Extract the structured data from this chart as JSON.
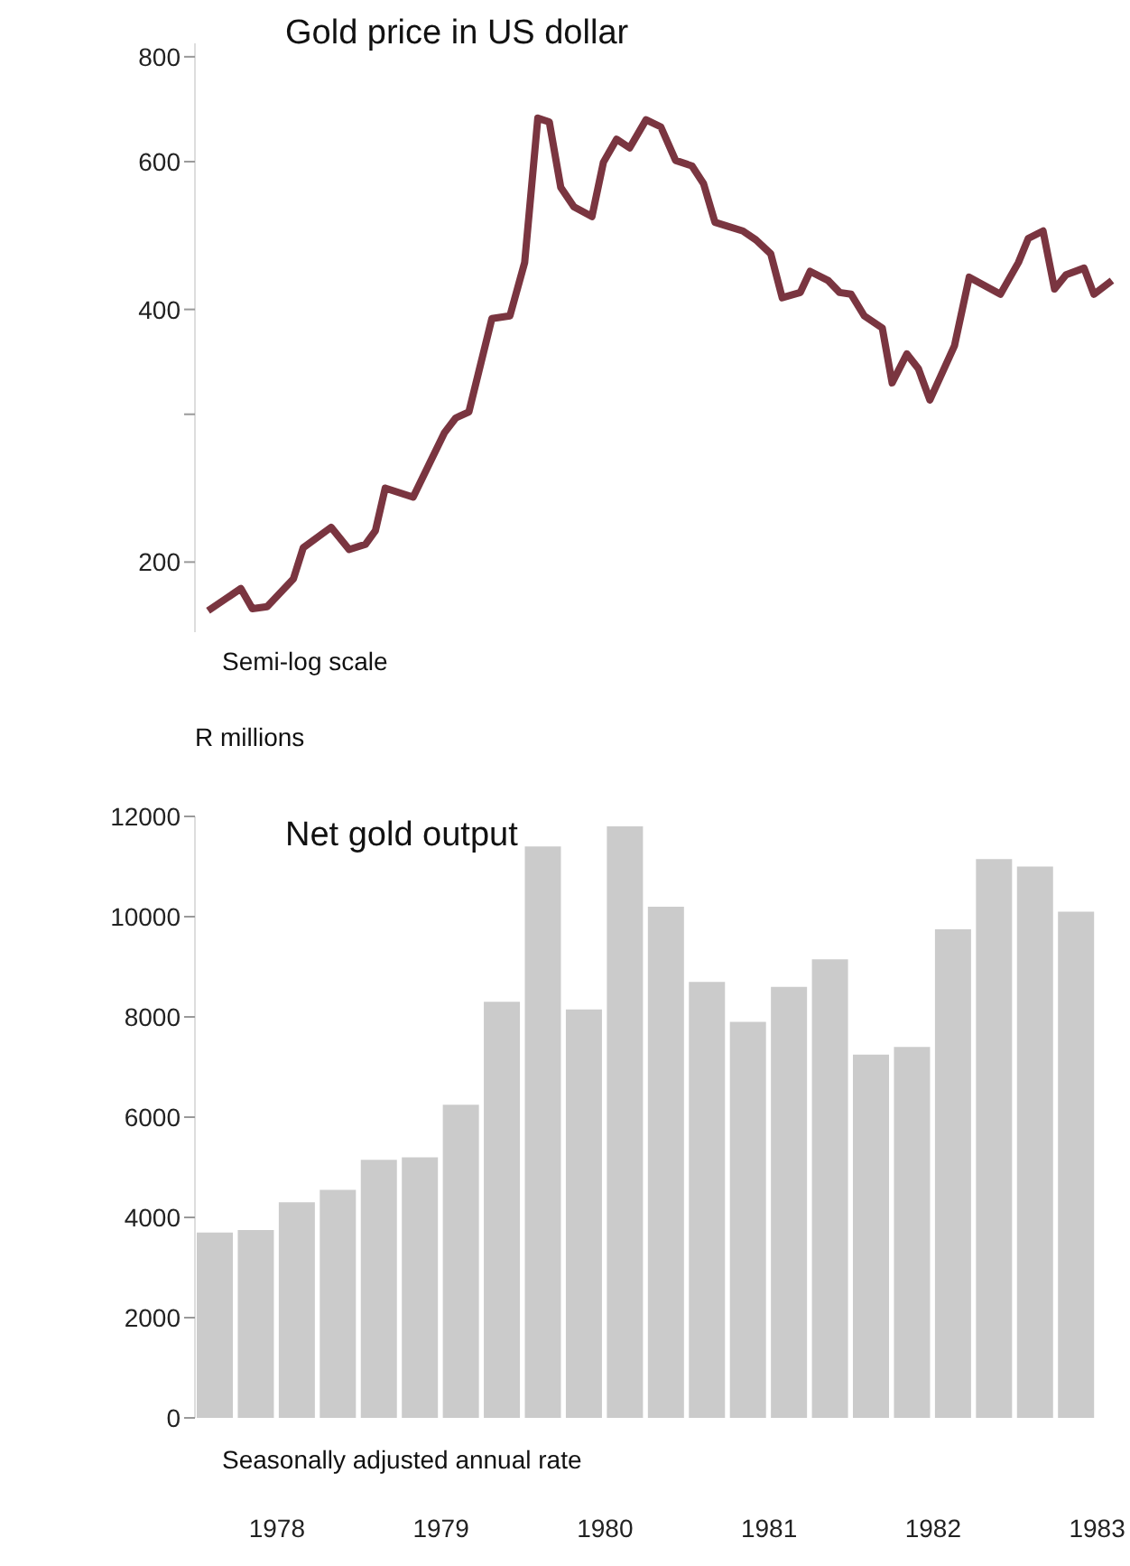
{
  "chart_data": [
    {
      "type": "line",
      "title": "Gold price in US dollar",
      "annotations": [
        "Semi-log scale"
      ],
      "color": "#7a3540",
      "log": true,
      "tick_labels": "y",
      "x": [
        1978.08,
        1978.28,
        1978.35,
        1978.44,
        1978.6,
        1978.66,
        1978.83,
        1978.94,
        1979.04,
        1979.1,
        1979.16,
        1979.33,
        1979.52,
        1979.59,
        1979.67,
        1979.81,
        1979.92,
        1980.01,
        1980.09,
        1980.16,
        1980.23,
        1980.31,
        1980.42,
        1980.49,
        1980.57,
        1980.65,
        1980.75,
        1980.84,
        1980.93,
        1981.03,
        1981.1,
        1981.17,
        1981.34,
        1981.42,
        1981.51,
        1981.58,
        1981.69,
        1981.75,
        1981.86,
        1981.93,
        1982.0,
        1982.08,
        1982.19,
        1982.25,
        1982.34,
        1982.41,
        1982.48,
        1982.63,
        1982.72,
        1982.91,
        1983.02,
        1983.08,
        1983.17,
        1983.24,
        1983.31,
        1983.42,
        1983.48,
        1983.59
      ],
      "values": [
        175,
        186,
        176,
        177,
        191,
        208,
        220,
        207,
        210,
        218,
        245,
        239,
        285,
        297,
        302,
        390,
        393,
        455,
        676,
        669,
        559,
        530,
        516,
        599,
        638,
        623,
        673,
        660,
        602,
        593,
        565,
        508,
        496,
        484,
        466,
        413,
        419,
        444,
        433,
        419,
        417,
        393,
        380,
        327,
        354,
        340,
        312,
        362,
        437,
        417,
        455,
        486,
        496,
        423,
        440,
        448,
        417,
        433
      ],
      "xlim": [
        1978,
        1983.7
      ],
      "ylim": [
        165,
        830
      ],
      "yticks": [
        200,
        {
          "value": 300,
          "label": null
        },
        400,
        600,
        800
      ]
    },
    {
      "type": "bar",
      "title": "Net gold output",
      "ylabel": "R millions",
      "annotations": [
        "Seasonally adjusted annual rate"
      ],
      "color": "#cbcbcb",
      "x": [
        1978.125,
        1978.375,
        1978.625,
        1978.875,
        1979.125,
        1979.375,
        1979.625,
        1979.875,
        1980.125,
        1980.375,
        1980.625,
        1980.875,
        1981.125,
        1981.375,
        1981.625,
        1981.875,
        1982.125,
        1982.375,
        1982.625,
        1982.875,
        1983.125,
        1983.375
      ],
      "values": [
        3700,
        3750,
        4300,
        4550,
        5150,
        5200,
        6250,
        8300,
        11400,
        8150,
        11800,
        10200,
        8700,
        7900,
        8600,
        9150,
        7250,
        7400,
        9750,
        11150,
        11000,
        10100
      ],
      "xlim": [
        1978,
        1983.7
      ],
      "xticks": [
        {
          "value": 1978.5,
          "label": "1978"
        },
        {
          "value": 1979.5,
          "label": "1979"
        },
        {
          "value": 1980.5,
          "label": "1980"
        },
        {
          "value": 1981.5,
          "label": "1981"
        },
        {
          "value": 1982.5,
          "label": "1982"
        },
        {
          "value": 1983.5,
          "label": "1983"
        }
      ],
      "ylim": [
        0,
        12000
      ],
      "yticks": [
        0,
        2000,
        4000,
        6000,
        8000,
        10000,
        12000
      ]
    }
  ]
}
